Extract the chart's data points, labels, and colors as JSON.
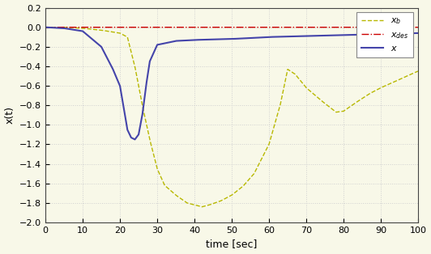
{
  "xlabel": "time [sec]",
  "ylabel": "x(t)",
  "xlim": [
    0,
    100
  ],
  "ylim": [
    -2,
    0.2
  ],
  "yticks": [
    -2,
    -1.8,
    -1.6,
    -1.4,
    -1.2,
    -1,
    -0.8,
    -0.6,
    -0.4,
    -0.2,
    0,
    0.2
  ],
  "xticks": [
    0,
    10,
    20,
    30,
    40,
    50,
    60,
    70,
    80,
    90,
    100
  ],
  "bg_color": "#f8f8e8",
  "grid_color": "#d0d0d0",
  "line_xb_color": "#b8b800",
  "line_xdes_color": "#cc0000",
  "line_x_color": "#4444aa",
  "xb_t": [
    0,
    5,
    10,
    15,
    20,
    22,
    24,
    26,
    28,
    30,
    32,
    35,
    38,
    40,
    42,
    44,
    47,
    50,
    53,
    56,
    60,
    63,
    65,
    67,
    70,
    74,
    78,
    80,
    83,
    87,
    90,
    93,
    97,
    100
  ],
  "xb_v": [
    0,
    0,
    -0.01,
    -0.03,
    -0.06,
    -0.1,
    -0.4,
    -0.8,
    -1.15,
    -1.45,
    -1.62,
    -1.72,
    -1.8,
    -1.82,
    -1.84,
    -1.82,
    -1.78,
    -1.72,
    -1.63,
    -1.5,
    -1.2,
    -0.8,
    -0.43,
    -0.48,
    -0.62,
    -0.75,
    -0.87,
    -0.86,
    -0.78,
    -0.68,
    -0.62,
    -0.57,
    -0.5,
    -0.45
  ],
  "xx_t": [
    0,
    5,
    10,
    15,
    18,
    20,
    21,
    22,
    23,
    24,
    25,
    26,
    27,
    28,
    30,
    35,
    40,
    50,
    60,
    70,
    80,
    90,
    100
  ],
  "xx_v": [
    0,
    -0.01,
    -0.04,
    -0.2,
    -0.42,
    -0.6,
    -0.82,
    -1.05,
    -1.13,
    -1.15,
    -1.1,
    -0.9,
    -0.6,
    -0.35,
    -0.18,
    -0.14,
    -0.13,
    -0.12,
    -0.1,
    -0.09,
    -0.08,
    -0.07,
    -0.06
  ]
}
